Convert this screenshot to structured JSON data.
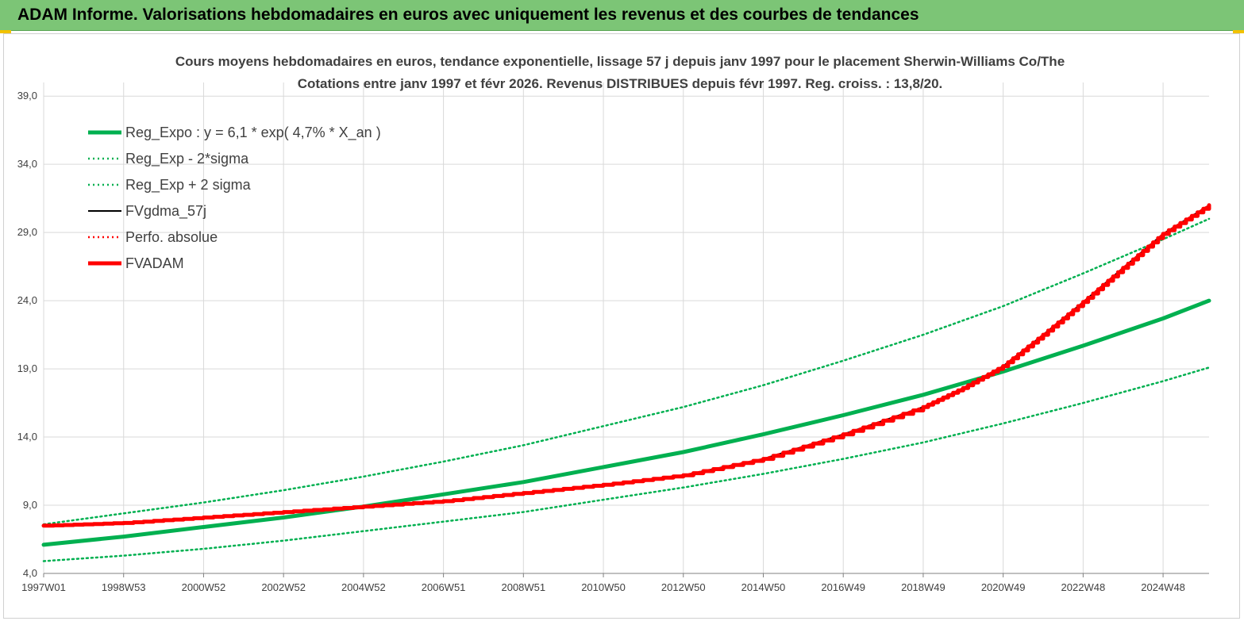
{
  "header": {
    "title": "ADAM Informe. Valorisations hebdomadaires en euros avec uniquement les revenus et des courbes de tendances"
  },
  "colors": {
    "header_bg": "#7cc576",
    "reg_expo": "#00b050",
    "bands": "#00b050",
    "fvgdma": "#000000",
    "perfo": "#ff0000",
    "fvadam": "#ff0000",
    "grid": "#d9d9d9"
  },
  "chart_data": {
    "type": "line",
    "title_line1": "Cours moyens hebdomadaires en euros, tendance exponentielle, lissage 57 j depuis janv 1997 pour le placement Sherwin-Williams Co/The",
    "title_line2": "Cotations entre janv 1997 et févr 2026. Revenus DISTRIBUES depuis févr 1997. Reg. croiss. : 13,8/20.",
    "xlabel": "",
    "ylabel": "",
    "ylim": [
      4,
      40
    ],
    "ytick_values": [
      4,
      9,
      14,
      19,
      24,
      29,
      34,
      39
    ],
    "ytick_labels": [
      "4,0",
      "9,0",
      "14,0",
      "19,0",
      "24,0",
      "29,0",
      "34,0",
      "39,0"
    ],
    "x_range_years": [
      1997.0,
      2026.15
    ],
    "xtick_labels": [
      "1997W01",
      "1998W53",
      "2000W52",
      "2002W52",
      "2004W52",
      "2006W51",
      "2008W51",
      "2010W50",
      "2012W50",
      "2014W50",
      "2016W49",
      "2018W49",
      "2020W49",
      "2022W48",
      "2024W48"
    ],
    "xtick_years": [
      1997.0,
      1999.0,
      2001.0,
      2003.0,
      2005.0,
      2007.0,
      2009.0,
      2011.0,
      2013.0,
      2015.0,
      2017.0,
      2019.0,
      2021.0,
      2023.0,
      2025.0
    ],
    "grid": true,
    "legend_position": "top-left",
    "series": [
      {
        "name": "Reg_Expo : y = 6,1 * exp( 4,7% *  X_an )",
        "style": "solid-thick",
        "color": "#00b050",
        "x": [
          1997,
          1999,
          2001,
          2003,
          2005,
          2007,
          2009,
          2011,
          2013,
          2015,
          2017,
          2019,
          2021,
          2023,
          2025,
          2026.15
        ],
        "y": [
          6.1,
          6.7,
          7.4,
          8.1,
          8.9,
          9.8,
          10.7,
          11.8,
          12.9,
          14.2,
          15.6,
          17.1,
          18.8,
          20.7,
          22.7,
          24.0
        ]
      },
      {
        "name": "Reg_Exp - 2*sigma",
        "style": "dotted",
        "color": "#00b050",
        "x": [
          1997,
          1999,
          2001,
          2003,
          2005,
          2007,
          2009,
          2011,
          2013,
          2015,
          2017,
          2019,
          2021,
          2023,
          2025,
          2026.15
        ],
        "y": [
          4.9,
          5.3,
          5.8,
          6.4,
          7.1,
          7.8,
          8.5,
          9.4,
          10.3,
          11.3,
          12.4,
          13.6,
          15.0,
          16.5,
          18.1,
          19.1
        ]
      },
      {
        "name": "Reg_Exp + 2 sigma",
        "style": "dotted",
        "color": "#00b050",
        "x": [
          1997,
          1999,
          2001,
          2003,
          2005,
          2007,
          2009,
          2011,
          2013,
          2015,
          2017,
          2019,
          2021,
          2023,
          2025,
          2026.15
        ],
        "y": [
          7.6,
          8.4,
          9.2,
          10.1,
          11.1,
          12.2,
          13.4,
          14.8,
          16.2,
          17.8,
          19.6,
          21.5,
          23.6,
          26.0,
          28.5,
          30.0
        ]
      },
      {
        "name": "FVgdma_57j",
        "style": "solid",
        "color": "#000000",
        "x": [
          1997,
          1999,
          2001,
          2003,
          2005,
          2007,
          2009,
          2011,
          2013,
          2015,
          2017,
          2019,
          2020,
          2021,
          2022,
          2023,
          2024,
          2025,
          2026.15
        ],
        "y": [
          7.5,
          7.7,
          8.1,
          8.5,
          8.9,
          9.3,
          9.9,
          10.5,
          11.2,
          12.4,
          14.2,
          16.2,
          17.6,
          19.2,
          21.5,
          23.9,
          26.4,
          28.9,
          31.0
        ]
      },
      {
        "name": "Perfo. absolue",
        "style": "dotted",
        "color": "#ff0000",
        "x": [
          1997,
          1999,
          2001,
          2003,
          2005,
          2007,
          2009,
          2011,
          2013,
          2015,
          2017,
          2019,
          2020,
          2021,
          2022,
          2023,
          2024,
          2025,
          2026.15
        ],
        "y": [
          7.5,
          7.7,
          8.1,
          8.5,
          8.9,
          9.3,
          9.9,
          10.5,
          11.2,
          12.4,
          14.2,
          16.2,
          17.6,
          19.2,
          21.5,
          23.9,
          26.4,
          28.9,
          31.0
        ]
      },
      {
        "name": "FVADAM",
        "style": "solid-thick",
        "color": "#ff0000",
        "x": [
          1997,
          1999,
          2001,
          2003,
          2005,
          2007,
          2009,
          2011,
          2013,
          2015,
          2017,
          2019,
          2020,
          2021,
          2022,
          2023,
          2024,
          2025,
          2026.15
        ],
        "y": [
          7.5,
          7.7,
          8.1,
          8.5,
          8.9,
          9.3,
          9.9,
          10.5,
          11.2,
          12.4,
          14.2,
          16.2,
          17.6,
          19.2,
          21.5,
          23.9,
          26.4,
          28.9,
          31.0
        ]
      }
    ]
  }
}
